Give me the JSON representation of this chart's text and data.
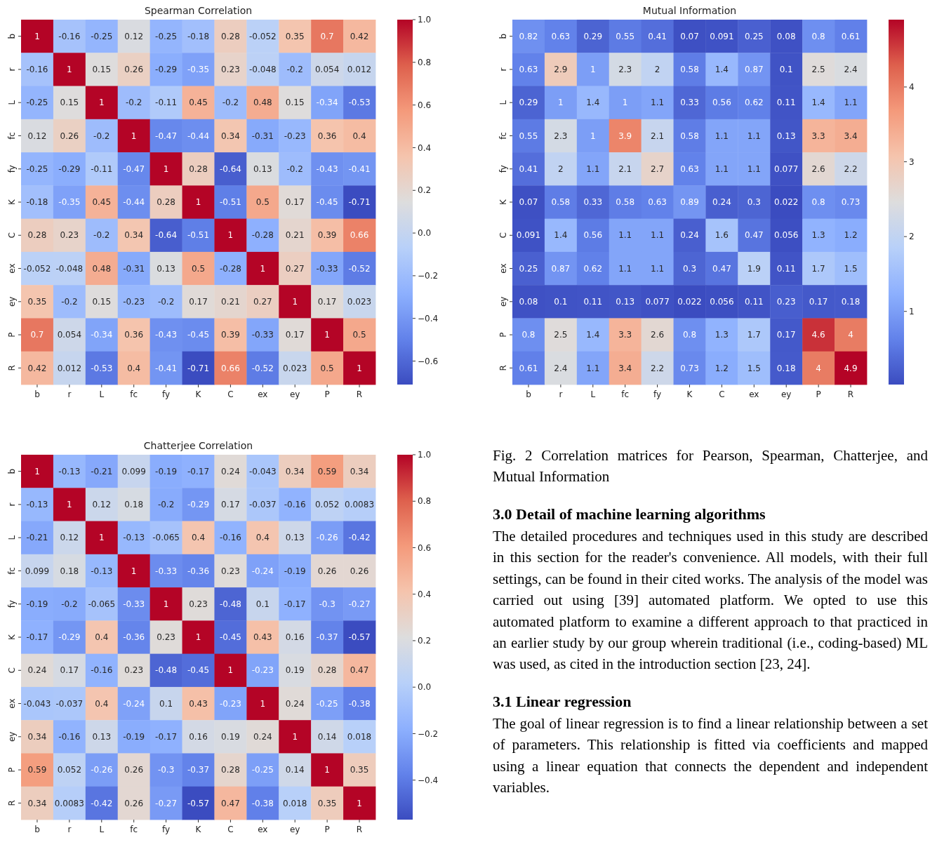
{
  "chart_data": [
    {
      "type": "heatmap",
      "title": "Spearman Correlation",
      "categories": [
        "b",
        "r",
        "L",
        "fc",
        "fy",
        "K",
        "C",
        "ex",
        "ey",
        "P",
        "R"
      ],
      "y_categories": [
        "b",
        "r",
        "L",
        "fc",
        "fy",
        "K",
        "C",
        "ex",
        "ey",
        "P",
        "R"
      ],
      "data_labels": true,
      "clim": [
        -0.71,
        1
      ],
      "cticks": [
        {
          "value": -0.6,
          "label": "−0.6"
        },
        {
          "value": -0.4,
          "label": "−0.4"
        },
        {
          "value": -0.2,
          "label": "−0.2"
        },
        {
          "value": 0,
          "label": "0.0"
        },
        0.2,
        0.4,
        0.6,
        0.8,
        {
          "value": 1,
          "label": "1.0"
        }
      ],
      "cells": [
        [
          1,
          -0.16,
          -0.25,
          0.12,
          -0.25,
          -0.18,
          0.28,
          -0.052,
          0.35,
          0.7,
          0.42
        ],
        [
          -0.16,
          1,
          0.15,
          0.26,
          -0.29,
          -0.35,
          0.23,
          -0.048,
          -0.2,
          0.054,
          0.012
        ],
        [
          -0.25,
          0.15,
          1,
          -0.2,
          -0.11,
          0.45,
          -0.2,
          0.48,
          0.15,
          -0.34,
          -0.53
        ],
        [
          0.12,
          0.26,
          -0.2,
          1,
          -0.47,
          -0.44,
          0.34,
          -0.31,
          -0.23,
          0.36,
          0.4
        ],
        [
          -0.25,
          -0.29,
          -0.11,
          -0.47,
          1,
          0.28,
          -0.64,
          0.13,
          -0.2,
          -0.43,
          -0.41
        ],
        [
          -0.18,
          -0.35,
          0.45,
          -0.44,
          0.28,
          1,
          -0.51,
          0.5,
          0.17,
          -0.45,
          -0.71
        ],
        [
          0.28,
          0.23,
          -0.2,
          0.34,
          -0.64,
          -0.51,
          1,
          -0.28,
          0.21,
          0.39,
          0.66
        ],
        [
          -0.052,
          -0.048,
          0.48,
          -0.31,
          0.13,
          0.5,
          -0.28,
          1,
          0.27,
          -0.33,
          -0.52
        ],
        [
          0.35,
          -0.2,
          0.15,
          -0.23,
          -0.2,
          0.17,
          0.21,
          0.27,
          1,
          0.17,
          0.023
        ],
        [
          0.7,
          0.054,
          -0.34,
          0.36,
          -0.43,
          -0.45,
          0.39,
          -0.33,
          0.17,
          1,
          0.5
        ],
        [
          0.42,
          0.012,
          -0.53,
          0.4,
          -0.41,
          -0.71,
          0.66,
          -0.52,
          0.023,
          0.5,
          1
        ]
      ]
    },
    {
      "type": "heatmap",
      "title": "Mutual Information",
      "categories": [
        "b",
        "r",
        "L",
        "fc",
        "fy",
        "K",
        "C",
        "ex",
        "ey",
        "P",
        "R"
      ],
      "y_categories": [
        "b",
        "r",
        "L",
        "fc",
        "fy",
        "K",
        "C",
        "ex",
        "ey",
        "P",
        "R"
      ],
      "data_labels": true,
      "clim": [
        0.022,
        4.9
      ],
      "cticks": [
        1,
        2,
        3,
        4
      ],
      "cells": [
        [
          0.82,
          0.63,
          0.29,
          0.55,
          0.41,
          0.07,
          0.091,
          0.25,
          0.08,
          0.8,
          0.61
        ],
        [
          0.63,
          2.9,
          1,
          2.3,
          2,
          0.58,
          1.4,
          0.87,
          0.1,
          2.5,
          2.4
        ],
        [
          0.29,
          1,
          1.4,
          1,
          1.1,
          0.33,
          0.56,
          0.62,
          0.11,
          1.4,
          1.1
        ],
        [
          0.55,
          2.3,
          1,
          3.9,
          2.1,
          0.58,
          1.1,
          1.1,
          0.13,
          3.3,
          3.4
        ],
        [
          0.41,
          2,
          1.1,
          2.1,
          2.7,
          0.63,
          1.1,
          1.1,
          0.077,
          2.6,
          2.2
        ],
        [
          0.07,
          0.58,
          0.33,
          0.58,
          0.63,
          0.89,
          0.24,
          0.3,
          0.022,
          0.8,
          0.73
        ],
        [
          0.091,
          1.4,
          0.56,
          1.1,
          1.1,
          0.24,
          1.6,
          0.47,
          0.056,
          1.3,
          1.2
        ],
        [
          0.25,
          0.87,
          0.62,
          1.1,
          1.1,
          0.3,
          0.47,
          1.9,
          0.11,
          1.7,
          1.5
        ],
        [
          0.08,
          0.1,
          0.11,
          0.13,
          0.077,
          0.022,
          0.056,
          0.11,
          0.23,
          0.17,
          0.18
        ],
        [
          0.8,
          2.5,
          1.4,
          3.3,
          2.6,
          0.8,
          1.3,
          1.7,
          0.17,
          4.6,
          4
        ],
        [
          0.61,
          2.4,
          1.1,
          3.4,
          2.2,
          0.73,
          1.2,
          1.5,
          0.18,
          4,
          4.9
        ]
      ]
    },
    {
      "type": "heatmap",
      "title": "Chatterjee Correlation",
      "categories": [
        "b",
        "r",
        "L",
        "fc",
        "fy",
        "K",
        "C",
        "ex",
        "ey",
        "P",
        "R"
      ],
      "y_categories": [
        "b",
        "r",
        "L",
        "fc",
        "fy",
        "K",
        "C",
        "ex",
        "ey",
        "P",
        "R"
      ],
      "data_labels": true,
      "clim": [
        -0.57,
        1
      ],
      "cticks": [
        {
          "value": -0.4,
          "label": "−0.4"
        },
        {
          "value": -0.2,
          "label": "−0.2"
        },
        {
          "value": 0,
          "label": "0.0"
        },
        0.2,
        0.4,
        0.6,
        0.8,
        {
          "value": 1,
          "label": "1.0"
        }
      ],
      "cells": [
        [
          1,
          -0.13,
          -0.21,
          0.099,
          -0.19,
          -0.17,
          0.24,
          -0.043,
          0.34,
          0.59,
          0.34
        ],
        [
          -0.13,
          1,
          0.12,
          0.18,
          -0.2,
          -0.29,
          0.17,
          -0.037,
          -0.16,
          0.052,
          0.0083
        ],
        [
          -0.21,
          0.12,
          1,
          -0.13,
          -0.065,
          0.4,
          -0.16,
          0.4,
          0.13,
          -0.26,
          -0.42
        ],
        [
          0.099,
          0.18,
          -0.13,
          1,
          -0.33,
          -0.36,
          0.23,
          -0.24,
          -0.19,
          0.26,
          0.26
        ],
        [
          -0.19,
          -0.2,
          -0.065,
          -0.33,
          1,
          0.23,
          -0.48,
          0.1,
          -0.17,
          -0.3,
          -0.27
        ],
        [
          -0.17,
          -0.29,
          0.4,
          -0.36,
          0.23,
          1,
          -0.45,
          0.43,
          0.16,
          -0.37,
          -0.57
        ],
        [
          0.24,
          0.17,
          -0.16,
          0.23,
          -0.48,
          -0.45,
          1,
          -0.23,
          0.19,
          0.28,
          0.47
        ],
        [
          -0.043,
          -0.037,
          0.4,
          -0.24,
          0.1,
          0.43,
          -0.23,
          1,
          0.24,
          -0.25,
          -0.38
        ],
        [
          0.34,
          -0.16,
          0.13,
          -0.19,
          -0.17,
          0.16,
          0.19,
          0.24,
          1,
          0.14,
          0.018
        ],
        [
          0.59,
          0.052,
          -0.26,
          0.26,
          -0.3,
          -0.37,
          0.28,
          -0.25,
          0.14,
          1,
          0.35
        ],
        [
          0.34,
          0.0083,
          -0.42,
          0.26,
          -0.27,
          -0.57,
          0.47,
          -0.38,
          0.018,
          0.35,
          1
        ]
      ]
    },
    {
      "type": "other",
      "annotations": [
        "Fig. 2 Correlation matrices for Pearson, Spearman, Chatterjee, and Mutual Information"
      ]
    },
    {
      "type": "other",
      "title": "3.0 Detail of machine learning algorithms",
      "annotations": [
        "The detailed procedures and techniques used in this study are described in this section for the reader's convenience. All models, with their full settings, can be found in their cited works. The analysis of the model was carried out using [39] automated platform. We opted to use this automated platform to examine a different approach to that practiced in an earlier study by our group wherein traditional (i.e., coding-based) ML was used, as cited in the introduction section [23, 24]."
      ]
    },
    {
      "type": "other",
      "title": "3.1 Linear regression",
      "annotations": [
        "The goal of linear regression is to find a linear relationship between a set of parameters. This relationship is fitted via coefficients and mapped using a linear equation that connects the dependent and independent variables."
      ]
    }
  ]
}
